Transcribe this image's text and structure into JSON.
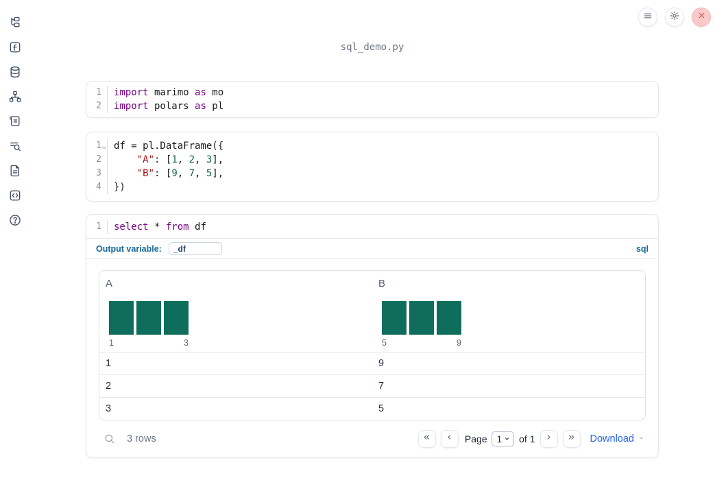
{
  "title": "sql_demo.py",
  "colors": {
    "accent_blue": "#15699c",
    "link_blue": "#2563eb",
    "bar_green": "#0e6e5b",
    "keyword": "#770088",
    "string": "#aa1111",
    "number": "#116644",
    "close_red": "#d34b4b"
  },
  "sidebar": {
    "icons": [
      "file-tree",
      "functions",
      "database",
      "dependency-graph",
      "scratchpad",
      "outline-search",
      "documentation",
      "snippets",
      "help"
    ]
  },
  "topbar": {
    "menu": "hamburger-menu",
    "settings": "gear",
    "close": "close-x"
  },
  "cells": [
    {
      "id": "imports",
      "lines": [
        {
          "num": "1",
          "tokens": [
            [
              "kw",
              "import"
            ],
            [
              "t",
              " marimo "
            ],
            [
              "kw",
              "as"
            ],
            [
              "t",
              " mo"
            ]
          ]
        },
        {
          "num": "2",
          "tokens": [
            [
              "kw",
              "import"
            ],
            [
              "t",
              " polars "
            ],
            [
              "kw",
              "as"
            ],
            [
              "t",
              " pl"
            ]
          ]
        }
      ]
    },
    {
      "id": "dataframe",
      "lines": [
        {
          "num": "1",
          "fold": true,
          "tokens": [
            [
              "t",
              "df = pl.DataFrame({"
            ]
          ]
        },
        {
          "num": "2",
          "tokens": [
            [
              "t",
              "    "
            ],
            [
              "str",
              "\"A\""
            ],
            [
              "t",
              ": ["
            ],
            [
              "num",
              "1"
            ],
            [
              "t",
              ", "
            ],
            [
              "num",
              "2"
            ],
            [
              "t",
              ", "
            ],
            [
              "num",
              "3"
            ],
            [
              "t",
              "],"
            ]
          ]
        },
        {
          "num": "3",
          "tokens": [
            [
              "t",
              "    "
            ],
            [
              "str",
              "\"B\""
            ],
            [
              "t",
              ": ["
            ],
            [
              "num",
              "9"
            ],
            [
              "t",
              ", "
            ],
            [
              "num",
              "7"
            ],
            [
              "t",
              ", "
            ],
            [
              "num",
              "5"
            ],
            [
              "t",
              "],"
            ]
          ]
        },
        {
          "num": "4",
          "tokens": [
            [
              "t",
              "})"
            ]
          ]
        }
      ]
    },
    {
      "id": "sql",
      "lines": [
        {
          "num": "1",
          "tokens": [
            [
              "kw",
              "select"
            ],
            [
              "t",
              " * "
            ],
            [
              "kw",
              "from"
            ],
            [
              "t",
              " df"
            ]
          ]
        }
      ]
    }
  ],
  "sql_cell": {
    "output_variable_label": "Output variable:",
    "output_variable_value": "_df",
    "language_badge": "sql"
  },
  "table": {
    "columns": [
      {
        "name": "A",
        "hist": {
          "bars": [
            1,
            1,
            1
          ],
          "min_label": "1",
          "max_label": "3"
        }
      },
      {
        "name": "B",
        "hist": {
          "bars": [
            1,
            1,
            1
          ],
          "min_label": "5",
          "max_label": "9"
        }
      }
    ],
    "rows": [
      [
        "1",
        "9"
      ],
      [
        "2",
        "7"
      ],
      [
        "3",
        "5"
      ]
    ],
    "footer": {
      "row_count": "3 rows",
      "page_label": "Page",
      "page_value": "1",
      "page_total": "of 1",
      "download_label": "Download"
    }
  }
}
